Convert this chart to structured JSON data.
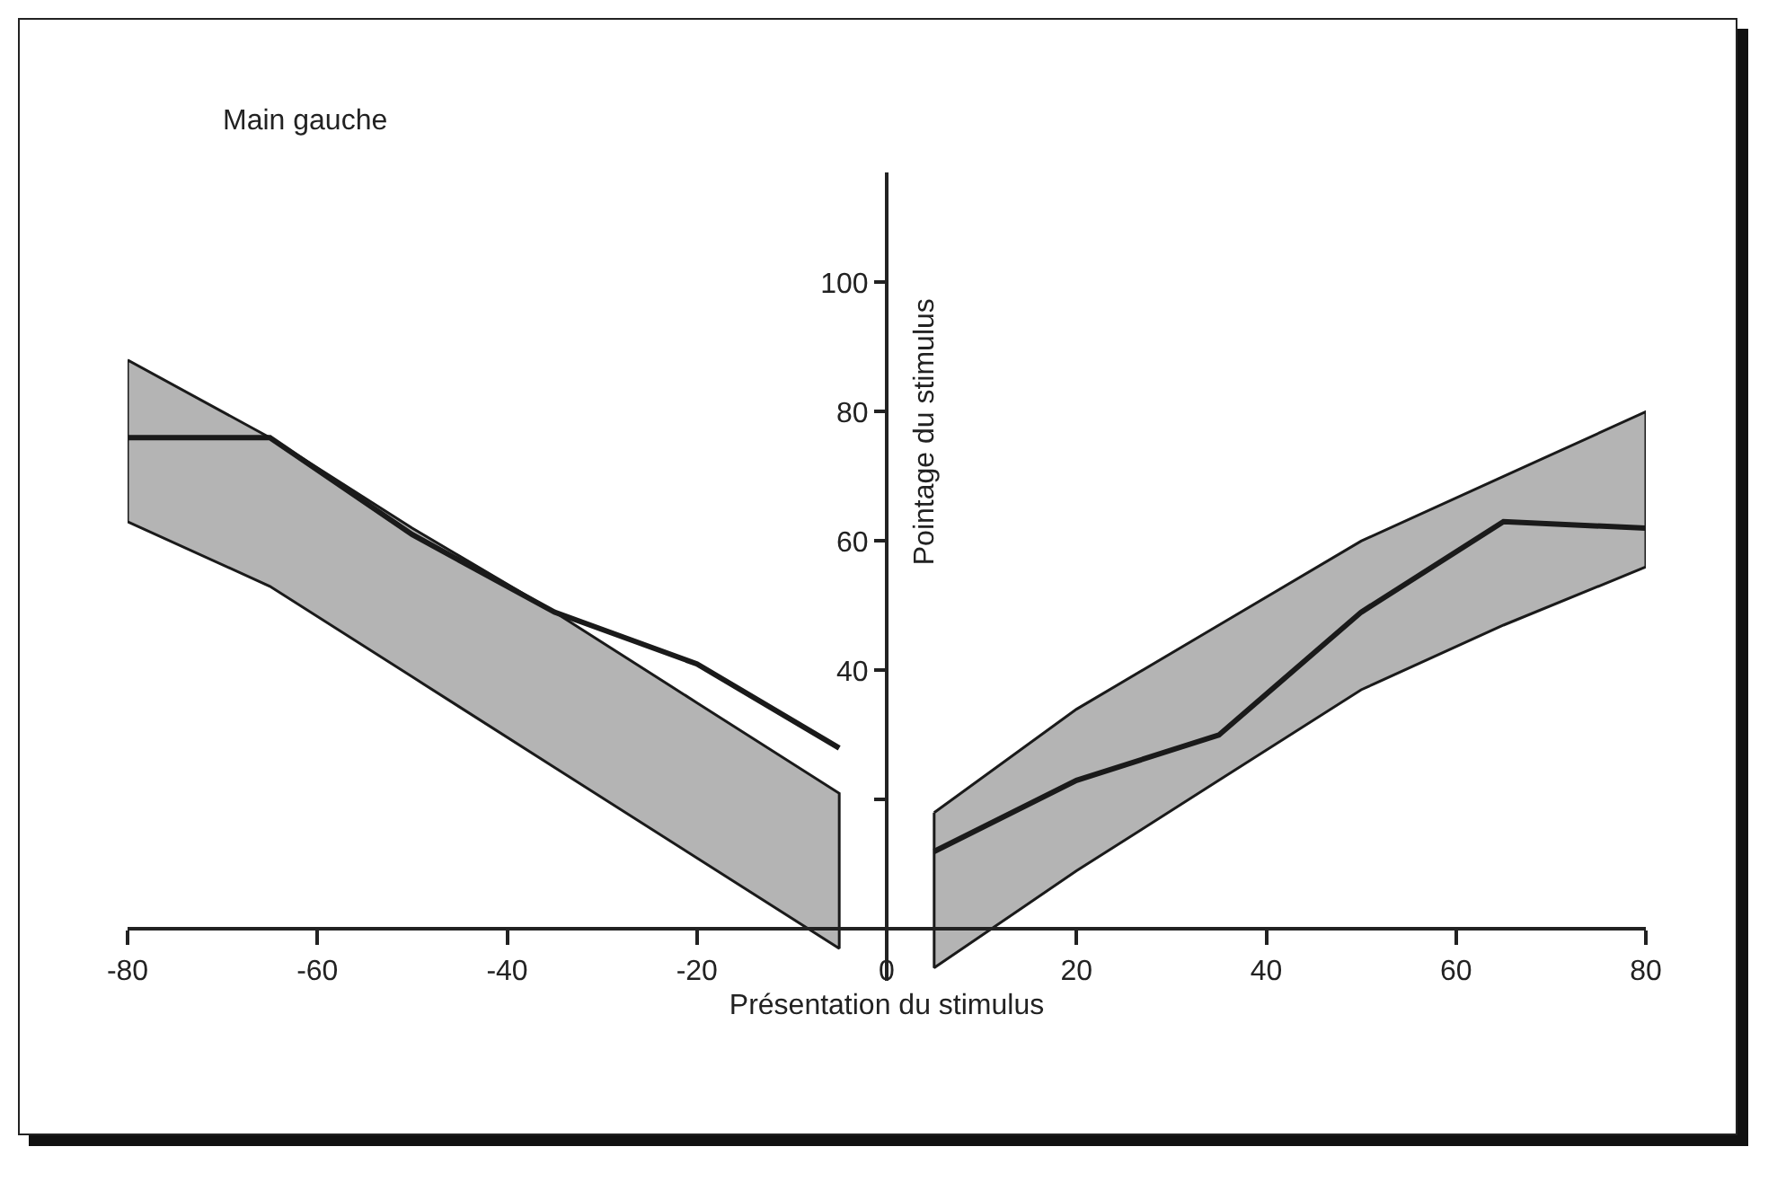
{
  "chart_data": {
    "type": "line",
    "xlabel": "Présentation du stimulus",
    "ylabel": "Pointage du stimulus",
    "annotations": [
      "Main gauche"
    ],
    "xlim": [
      -80,
      80
    ],
    "ylim": [
      -8,
      117
    ],
    "xticks": [
      -80,
      -60,
      -40,
      -20,
      0,
      20,
      40,
      60,
      80
    ],
    "yticks": [
      {
        "value": 20,
        "label": null
      },
      40,
      60,
      80,
      100
    ],
    "grid": false,
    "marker": "none",
    "line_style": "solid",
    "series": [
      {
        "color": "#1a1a1a",
        "x": [
          -80,
          -65,
          -50,
          -35,
          -20,
          -5
        ],
        "values": [
          76,
          76,
          61,
          49,
          41,
          28
        ],
        "lower": [
          63,
          53,
          39,
          25,
          11,
          -3
        ],
        "upper": [
          88,
          76,
          62,
          49,
          35,
          21
        ]
      },
      {
        "color": "#1a1a1a",
        "x": [
          5,
          20,
          35,
          50,
          65,
          80
        ],
        "values": [
          12,
          23,
          30,
          49,
          63,
          62
        ],
        "lower": [
          -6,
          9,
          23,
          37,
          47,
          56
        ],
        "upper": [
          18,
          34,
          47,
          60,
          70,
          80
        ]
      }
    ]
  }
}
